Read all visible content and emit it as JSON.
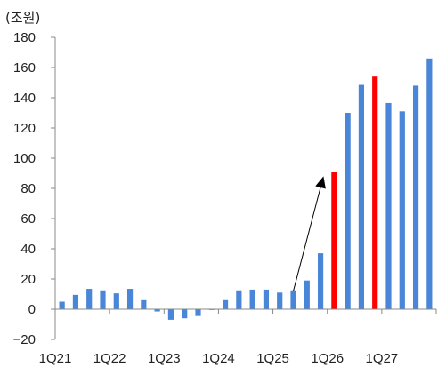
{
  "chart_data": {
    "type": "bar",
    "unit_label": "(조원)",
    "ylim": [
      -20,
      180
    ],
    "yticks": [
      -20,
      0,
      20,
      40,
      60,
      80,
      100,
      120,
      140,
      160,
      180
    ],
    "grid": false,
    "x_labels": [
      "1Q21",
      "1Q22",
      "1Q23",
      "1Q24",
      "1Q25",
      "1Q26",
      "1Q27"
    ],
    "values": [
      5,
      9.5,
      13.5,
      12.5,
      10.5,
      13.5,
      6,
      -1.5,
      -7,
      -6,
      -4.5,
      -0.5,
      6,
      12.5,
      13,
      13,
      11,
      12.5,
      19,
      37,
      91,
      130,
      148.5,
      154,
      136.5,
      131,
      148,
      166
    ],
    "highlight_indices": [
      20,
      23
    ],
    "colors": {
      "default": "#4a86d8",
      "highlight": "#ff0000",
      "axis": "#888888",
      "arrow": "#000000"
    },
    "annotations": [
      {
        "type": "arrow",
        "from": {
          "category_index": 17,
          "value": 12
        },
        "to": {
          "category_index": 20,
          "value": 88
        }
      }
    ]
  }
}
